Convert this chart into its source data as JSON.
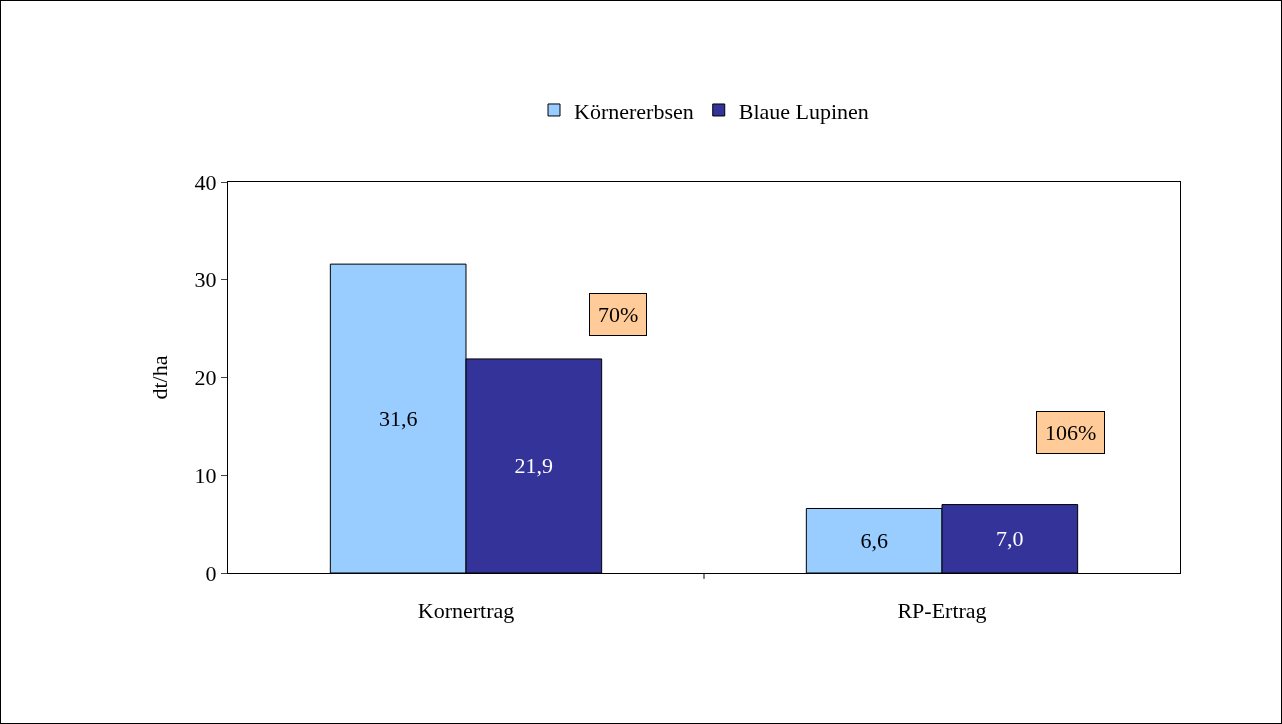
{
  "chart_data": {
    "type": "bar",
    "ylabel": "dt/ha",
    "categories": [
      "Kornertrag",
      "RP-Ertrag"
    ],
    "series": [
      {
        "name": "Körnererbsen",
        "color": "#99ccff",
        "values": [
          31.6,
          6.6
        ],
        "value_labels": [
          "31,6",
          "6,6"
        ]
      },
      {
        "name": "Blaue Lupinen",
        "color": "#333399",
        "values": [
          21.9,
          7.0
        ],
        "value_labels": [
          "21,9",
          "7,0"
        ]
      }
    ],
    "annotations": [
      "70%",
      "106%"
    ],
    "ylim": [
      0,
      40
    ],
    "yticks": [
      0,
      10,
      20,
      30,
      40
    ],
    "grid": false,
    "legend": "top"
  }
}
